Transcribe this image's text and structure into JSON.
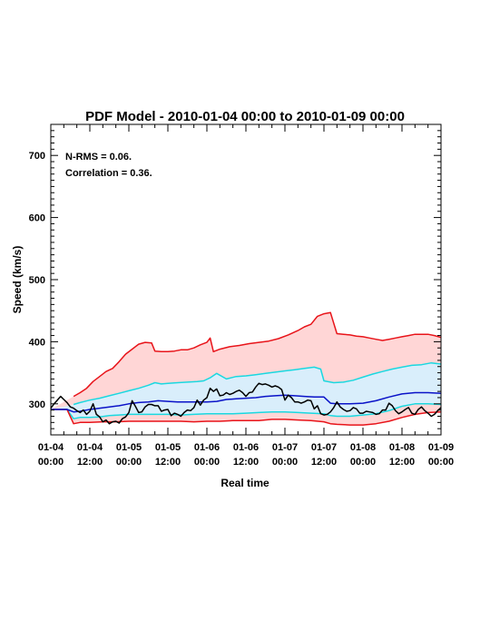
{
  "chart_data": {
    "type": "area",
    "title": "PDF Model - 2010-01-04 00:00 to 2010-01-09 00:00",
    "xlabel": "Real time",
    "ylabel": "Speed (km/s)",
    "annotations": [
      "N-RMS = 0.06.",
      "Correlation = 0.36."
    ],
    "xlim": [
      0,
      120
    ],
    "ylim": [
      250,
      750
    ],
    "x_unit": "hours since 2010-01-04 00:00",
    "x_ticks": [
      {
        "x": 0,
        "line1": "01-04",
        "line2": "00:00"
      },
      {
        "x": 12,
        "line1": "01-04",
        "line2": "12:00"
      },
      {
        "x": 24,
        "line1": "01-05",
        "line2": "00:00"
      },
      {
        "x": 36,
        "line1": "01-05",
        "line2": "12:00"
      },
      {
        "x": 48,
        "line1": "01-06",
        "line2": "00:00"
      },
      {
        "x": 60,
        "line1": "01-06",
        "line2": "12:00"
      },
      {
        "x": 72,
        "line1": "01-07",
        "line2": "00:00"
      },
      {
        "x": 84,
        "line1": "01-07",
        "line2": "12:00"
      },
      {
        "x": 96,
        "line1": "01-08",
        "line2": "00:00"
      },
      {
        "x": 108,
        "line1": "01-08",
        "line2": "12:00"
      },
      {
        "x": 120,
        "line1": "01-09",
        "line2": "00:00"
      }
    ],
    "y_ticks": [
      300,
      400,
      500,
      600,
      700
    ],
    "bands": [
      {
        "color": "#ffd6d6",
        "upper": "outer_upper",
        "lower": "outer_lower"
      },
      {
        "color": "#d9eefb",
        "upper": "inner_upper",
        "lower": "inner_lower"
      }
    ],
    "series": [
      {
        "id": "outer_upper",
        "color": "#e8141a",
        "x": [
          7,
          9,
          11,
          13,
          15,
          17,
          19,
          21,
          23,
          25,
          27,
          29,
          31,
          32,
          34,
          36,
          38,
          40,
          42,
          44,
          46,
          48,
          49,
          50,
          52,
          55,
          58,
          61,
          64,
          67,
          70,
          73,
          76,
          78,
          80,
          82,
          84,
          86,
          88,
          90,
          92,
          94,
          96,
          98,
          100,
          102,
          104,
          106,
          108,
          110,
          112,
          114,
          116,
          118,
          120
        ],
        "values": [
          312,
          318,
          325,
          336,
          344,
          352,
          357,
          368,
          380,
          388,
          396,
          399,
          398,
          385,
          384,
          384,
          385,
          387,
          387,
          390,
          395,
          399,
          406,
          384,
          388,
          392,
          394,
          397,
          399,
          401,
          405,
          411,
          418,
          424,
          428,
          441,
          445,
          447,
          413,
          412,
          411,
          409,
          408,
          406,
          404,
          402,
          404,
          406,
          408,
          410,
          412,
          412,
          412,
          410,
          407
        ]
      },
      {
        "id": "inner_upper",
        "color": "#1ad8e0",
        "x": [
          7,
          9,
          12,
          15,
          18,
          21,
          24,
          27,
          30,
          32,
          34,
          36,
          39,
          42,
          45,
          47,
          49,
          51,
          54,
          57,
          60,
          63,
          66,
          69,
          72,
          75,
          78,
          81,
          83,
          84,
          87,
          90,
          93,
          96,
          99,
          102,
          105,
          108,
          111,
          114,
          117,
          120
        ],
        "values": [
          299,
          302,
          306,
          309,
          313,
          317,
          321,
          325,
          330,
          334,
          332,
          333,
          334,
          335,
          336,
          337,
          342,
          349,
          340,
          344,
          345,
          347,
          349,
          351,
          353,
          355,
          357,
          359,
          356,
          337,
          334,
          335,
          338,
          343,
          348,
          352,
          356,
          359,
          362,
          363,
          366,
          364
        ]
      },
      {
        "id": "inner_lower",
        "color": "#1ad8e0",
        "x": [
          0,
          5,
          7,
          9,
          12,
          15,
          18,
          21,
          24,
          28,
          32,
          36,
          40,
          44,
          48,
          52,
          56,
          60,
          64,
          68,
          72,
          76,
          80,
          84,
          86,
          88,
          92,
          96,
          100,
          104,
          108,
          112,
          116,
          120
        ],
        "values": [
          291,
          291,
          276,
          278,
          278,
          279,
          281,
          282,
          283,
          283,
          283,
          283,
          282,
          283,
          284,
          284,
          284,
          285,
          286,
          287,
          287,
          286,
          285,
          284,
          281,
          280,
          280,
          282,
          284,
          289,
          296,
          300,
          300,
          299
        ]
      },
      {
        "id": "outer_lower",
        "color": "#e8141a",
        "x": [
          0,
          5,
          7,
          9,
          12,
          16,
          20,
          24,
          28,
          32,
          36,
          40,
          44,
          48,
          52,
          56,
          60,
          64,
          68,
          72,
          76,
          80,
          84,
          86,
          88,
          92,
          96,
          100,
          104,
          108,
          112,
          116,
          120
        ],
        "values": [
          291,
          291,
          268,
          270,
          270,
          271,
          271,
          272,
          272,
          272,
          272,
          272,
          271,
          272,
          272,
          273,
          273,
          273,
          275,
          275,
          274,
          273,
          271,
          268,
          267,
          266,
          266,
          268,
          272,
          278,
          283,
          286,
          287
        ]
      },
      {
        "id": "median",
        "color": "#0a12c8",
        "x": [
          0,
          5,
          7,
          9,
          12,
          15,
          18,
          21,
          24,
          27,
          30,
          33,
          36,
          39,
          42,
          45,
          48,
          51,
          54,
          57,
          60,
          63,
          66,
          69,
          72,
          75,
          78,
          81,
          84,
          86,
          88,
          92,
          96,
          100,
          104,
          108,
          112,
          116,
          120
        ],
        "values": [
          291,
          291,
          287,
          288,
          291,
          293,
          295,
          297,
          300,
          302,
          303,
          305,
          304,
          303,
          303,
          303,
          303,
          304,
          307,
          308,
          309,
          310,
          312,
          313,
          314,
          313,
          312,
          311,
          311,
          301,
          300,
          300,
          301,
          305,
          311,
          316,
          318,
          318,
          317
        ]
      },
      {
        "id": "observed",
        "color": "#000000",
        "x": [
          0,
          1,
          2,
          3,
          4,
          5,
          6,
          7,
          8,
          9,
          10,
          11,
          12,
          13,
          14,
          15,
          16,
          17,
          18,
          19,
          20,
          21,
          22,
          23,
          24,
          25,
          26,
          27,
          28,
          29,
          30,
          31,
          32,
          33,
          34,
          35,
          36,
          37,
          38,
          39,
          40,
          41,
          42,
          43,
          44,
          45,
          46,
          47,
          48,
          49,
          50,
          51,
          52,
          53,
          54,
          55,
          56,
          57,
          58,
          59,
          60,
          61,
          62,
          63,
          64,
          65,
          66,
          67,
          68,
          69,
          70,
          71,
          72,
          73,
          74,
          75,
          76,
          77,
          78,
          79,
          80,
          81,
          82,
          83,
          84,
          85,
          86,
          87,
          88,
          89,
          90,
          91,
          92,
          93,
          94,
          95,
          96,
          97,
          98,
          99,
          100,
          101,
          102,
          103,
          104,
          105,
          106,
          107,
          108,
          109,
          110,
          111,
          112,
          113,
          114,
          115,
          116,
          117,
          118,
          119,
          120
        ],
        "values": [
          293,
          300,
          306,
          312,
          307,
          302,
          295,
          293,
          289,
          286,
          290,
          283,
          288,
          300,
          283,
          279,
          271,
          274,
          268,
          271,
          272,
          269,
          276,
          279,
          286,
          305,
          296,
          286,
          287,
          295,
          299,
          299,
          297,
          297,
          288,
          290,
          291,
          281,
          285,
          283,
          280,
          286,
          290,
          289,
          294,
          306,
          298,
          306,
          310,
          325,
          320,
          324,
          313,
          314,
          318,
          315,
          317,
          320,
          322,
          318,
          312,
          318,
          319,
          327,
          333,
          331,
          332,
          330,
          327,
          329,
          327,
          323,
          306,
          314,
          310,
          303,
          303,
          301,
          303,
          306,
          305,
          292,
          297,
          284,
          282,
          283,
          287,
          294,
          303,
          295,
          291,
          288,
          289,
          294,
          292,
          285,
          285,
          288,
          287,
          286,
          283,
          284,
          290,
          290,
          301,
          297,
          289,
          284,
          287,
          291,
          294,
          285,
          283,
          291,
          295,
          289,
          285,
          280,
          283,
          289,
          294
        ]
      }
    ]
  }
}
